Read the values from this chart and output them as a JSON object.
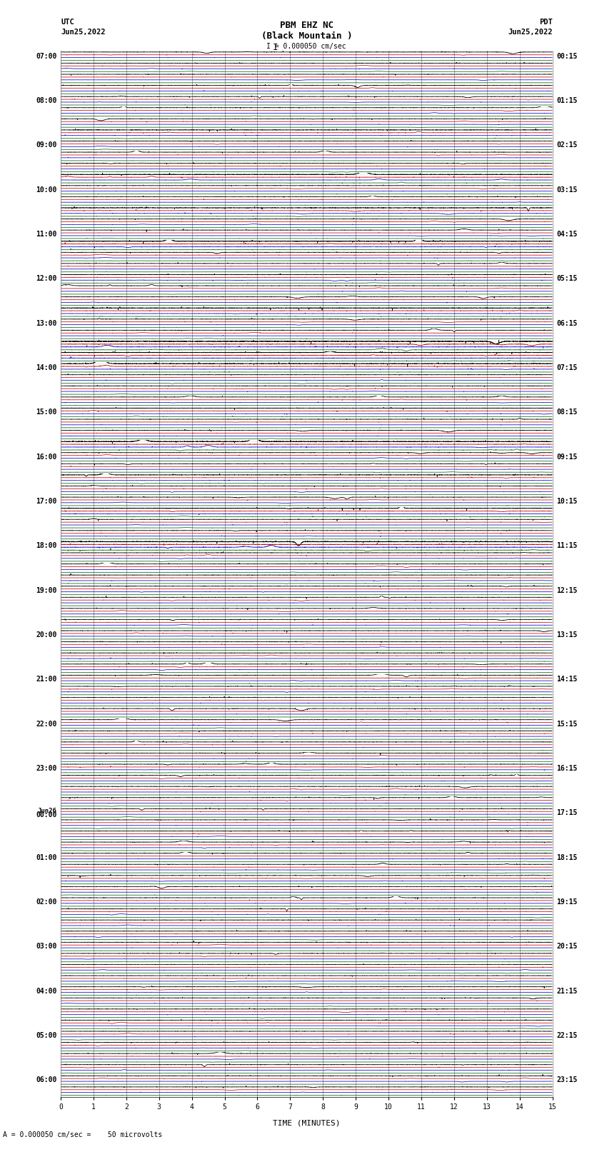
{
  "title_line1": "PBM EHZ NC",
  "title_line2": "(Black Mountain )",
  "scale_text": "I = 0.000050 cm/sec",
  "bottom_scale_text": "= 0.000050 cm/sec =    50 microvolts",
  "left_label": "UTC",
  "left_date": "Jun25,2022",
  "right_label": "PDT",
  "right_date": "Jun25,2022",
  "xlabel": "TIME (MINUTES)",
  "xmin": 0,
  "xmax": 15,
  "background_color": "#ffffff",
  "fig_width": 8.5,
  "fig_height": 16.13,
  "dpi": 100,
  "grid_color": "#666666",
  "grid_linewidth": 0.4,
  "trace_linewidth": 0.5,
  "seed": 42,
  "left_times": [
    "07:00",
    "",
    "",
    "",
    "08:00",
    "",
    "",
    "",
    "09:00",
    "",
    "",
    "",
    "10:00",
    "",
    "",
    "",
    "11:00",
    "",
    "",
    "",
    "12:00",
    "",
    "",
    "",
    "13:00",
    "",
    "",
    "",
    "14:00",
    "",
    "",
    "",
    "15:00",
    "",
    "",
    "",
    "16:00",
    "",
    "",
    "",
    "17:00",
    "",
    "",
    "",
    "18:00",
    "",
    "",
    "",
    "19:00",
    "",
    "",
    "",
    "20:00",
    "",
    "",
    "",
    "21:00",
    "",
    "",
    "",
    "22:00",
    "",
    "",
    "",
    "23:00",
    "",
    "",
    "",
    "Jun26\n00:00",
    "",
    "",
    "",
    "01:00",
    "",
    "",
    "",
    "02:00",
    "",
    "",
    "",
    "03:00",
    "",
    "",
    "",
    "04:00",
    "",
    "",
    "",
    "05:00",
    "",
    "",
    "",
    "06:00",
    ""
  ],
  "right_times": [
    "00:15",
    "",
    "",
    "",
    "01:15",
    "",
    "",
    "",
    "02:15",
    "",
    "",
    "",
    "03:15",
    "",
    "",
    "",
    "04:15",
    "",
    "",
    "",
    "05:15",
    "",
    "",
    "",
    "06:15",
    "",
    "",
    "",
    "07:15",
    "",
    "",
    "",
    "08:15",
    "",
    "",
    "",
    "09:15",
    "",
    "",
    "",
    "10:15",
    "",
    "",
    "",
    "11:15",
    "",
    "",
    "",
    "12:15",
    "",
    "",
    "",
    "13:15",
    "",
    "",
    "",
    "14:15",
    "",
    "",
    "",
    "15:15",
    "",
    "",
    "",
    "16:15",
    "",
    "",
    "",
    "17:15",
    "",
    "",
    "",
    "18:15",
    "",
    "",
    "",
    "19:15",
    "",
    "",
    "",
    "20:15",
    "",
    "",
    "",
    "21:15",
    "",
    "",
    "",
    "22:15",
    "",
    "",
    "",
    "23:15",
    ""
  ],
  "trace_colors": [
    "#000000",
    "#cc0000",
    "#0000cc",
    "#006600"
  ],
  "noise_base": 0.012,
  "spike_prob": 0.003,
  "spike_amp": 0.12
}
